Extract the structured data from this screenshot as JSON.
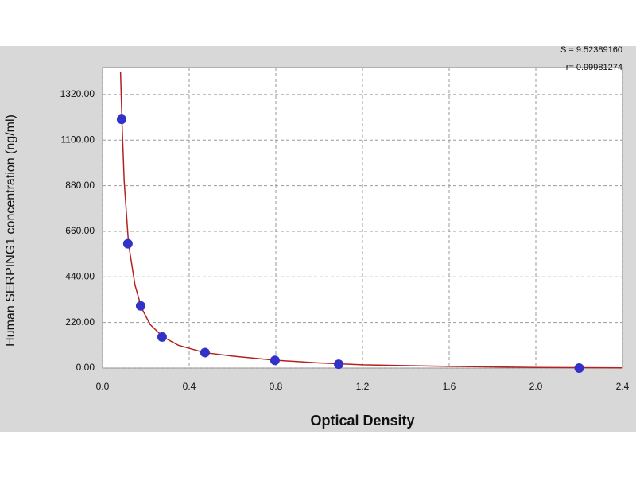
{
  "chart_data": {
    "type": "scatter",
    "x_label": "Optical Density",
    "y_label": "Human SERPING1 concentration (ng/ml)",
    "annotations": [
      "S = 9.52389160",
      "r= 0.99981274"
    ],
    "x": [
      0.088,
      0.117,
      0.176,
      0.275,
      0.473,
      0.796,
      1.09,
      2.2
    ],
    "values": [
      1200,
      600,
      300,
      150,
      75,
      37.5,
      18.75,
      0
    ],
    "color": "#3232c8",
    "curve": {
      "color": "#b22222",
      "x": [
        0.083,
        0.09,
        0.1,
        0.12,
        0.15,
        0.18,
        0.22,
        0.28,
        0.35,
        0.47,
        0.6,
        0.8,
        1.0,
        1.2,
        1.6,
        2.0,
        2.4
      ],
      "values": [
        1430,
        1180,
        900,
        600,
        400,
        290,
        210,
        150,
        110,
        75,
        58,
        38,
        25,
        16,
        8,
        3,
        1
      ]
    },
    "xlim": [
      0,
      2.4
    ],
    "ylim": [
      0,
      1450
    ],
    "xticks": [
      {
        "value": 0,
        "label": "0.0"
      },
      0.4,
      0.8,
      1.2,
      1.6,
      {
        "value": 2,
        "label": "2.0"
      },
      2.4
    ],
    "yticks": [
      {
        "value": 0,
        "label": "0.00"
      },
      {
        "value": 220,
        "label": "220.00"
      },
      {
        "value": 440,
        "label": "440.00"
      },
      {
        "value": 660,
        "label": "660.00"
      },
      {
        "value": 880,
        "label": "880.00"
      },
      {
        "value": 1100,
        "label": "1100.00"
      },
      {
        "value": 1320,
        "label": "1320.00"
      }
    ],
    "grid": true
  }
}
